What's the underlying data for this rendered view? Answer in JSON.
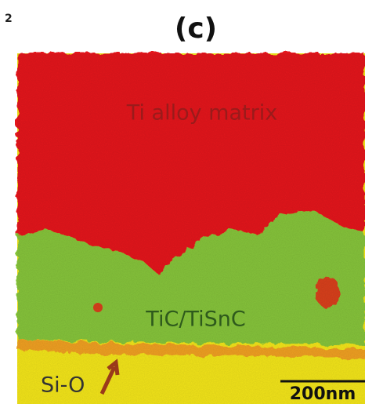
{
  "corner_text": "2",
  "panel_label": "(c)",
  "labels": {
    "matrix": "Ti alloy matrix",
    "layer": "TiC/TiSnC",
    "oxide": "Si-O"
  },
  "scale_bar": "200nm"
}
